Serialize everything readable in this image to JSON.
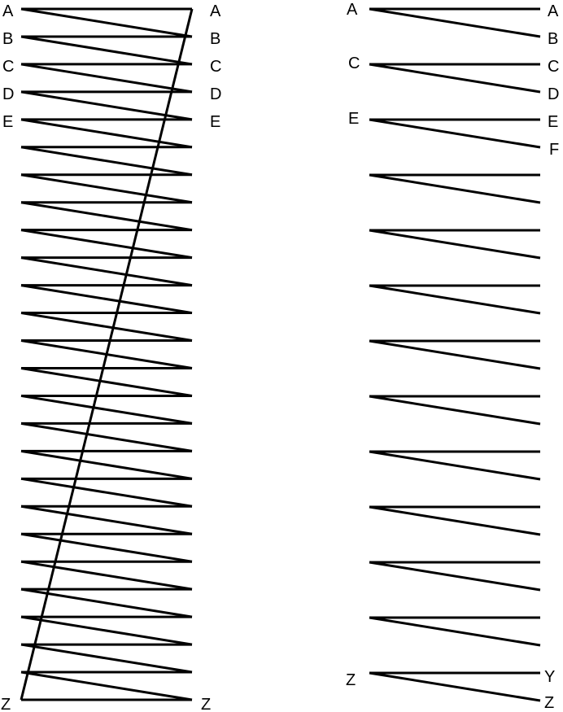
{
  "left_diagram": {
    "rungs": 26,
    "labels_left": [
      "A",
      "B",
      "C",
      "D",
      "E"
    ],
    "labels_right": [
      "A",
      "B",
      "C",
      "D",
      "E"
    ],
    "bottom_left_label": "Z",
    "bottom_right_label": "Z"
  },
  "right_diagram": {
    "groups": 13,
    "labels_left": [
      "A",
      "C",
      "E"
    ],
    "labels_right": [
      "A",
      "B",
      "C",
      "D",
      "E",
      "F"
    ],
    "bottom_left_label": "Z",
    "bottom_right_labels": [
      "Y",
      "Z"
    ]
  }
}
